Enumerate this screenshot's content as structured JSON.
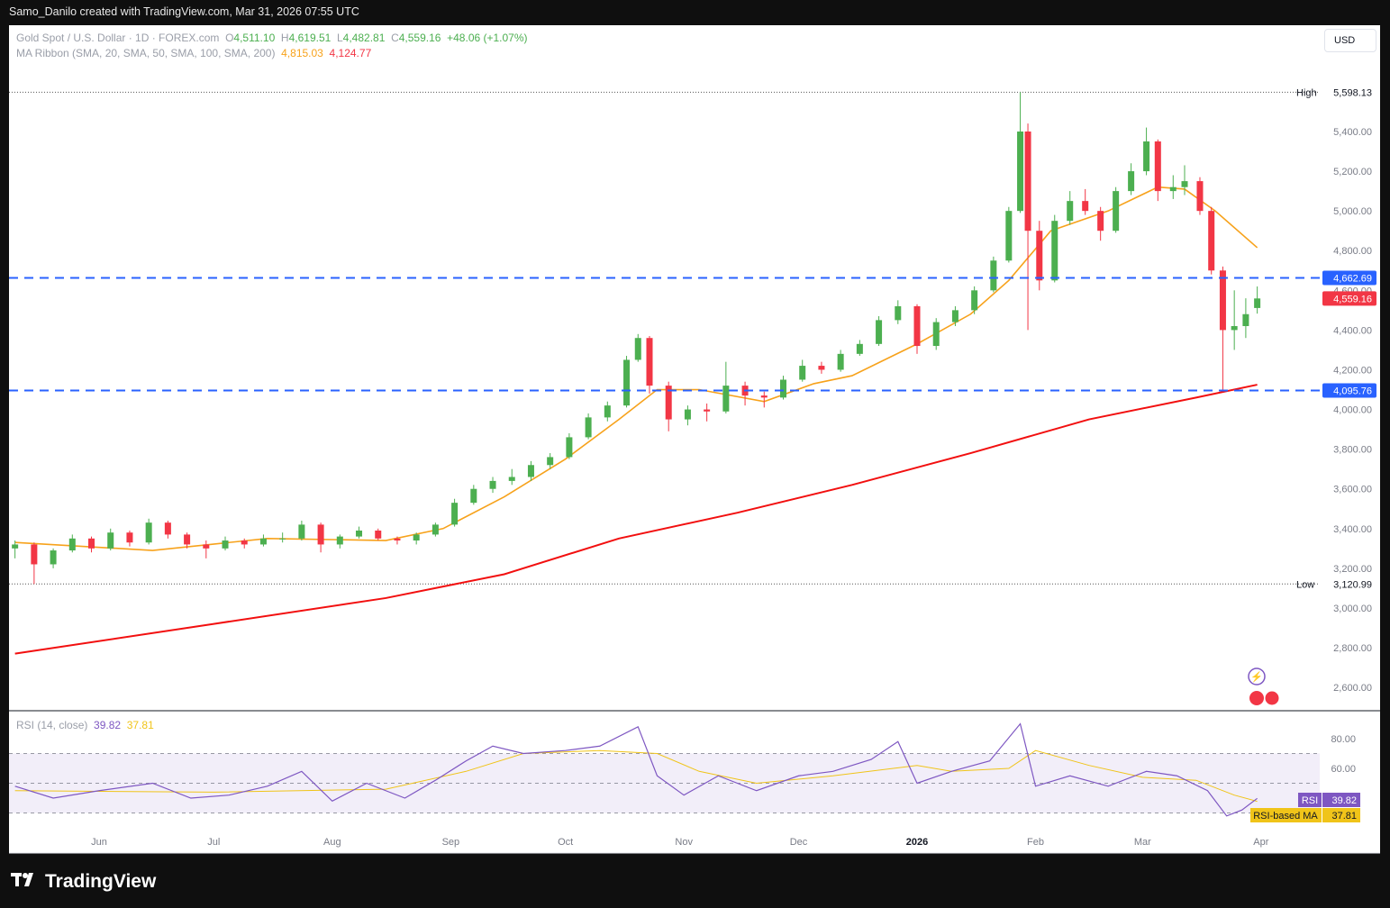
{
  "header": {
    "credit": "Samo_Danilo created with TradingView.com, Mar 31, 2026 07:55 UTC",
    "currency": "USD"
  },
  "legend": {
    "symbol": "Gold Spot / U.S. Dollar · 1D · FOREX.com",
    "o_label": "O",
    "o": "4,511.10",
    "h_label": "H",
    "h": "4,619.51",
    "l_label": "L",
    "l": "4,482.81",
    "c_label": "C",
    "c": "4,559.16",
    "change": "+48.06 (+1.07%)",
    "ma_label": "MA Ribbon (SMA, 20, SMA, 50, SMA, 100, SMA, 200)",
    "ma20": "4,815.03",
    "ma200": "4,124.77",
    "rsi_label": "RSI (14, close)",
    "rsi": "39.82",
    "rsi_ma": "37.81"
  },
  "footer": {
    "brand": "TradingView"
  },
  "colors": {
    "up": "#4caf50",
    "down": "#f23645",
    "sma20": "#f7a21b",
    "sma200": "#f20f0f",
    "levels": "#2962ff",
    "rsi": "#7e57c2",
    "rsi_ma": "#f0c419"
  },
  "chart_data": {
    "type": "candlestick",
    "price_axis": {
      "ticks": [
        2600,
        2800,
        3000,
        3200,
        3400,
        3600,
        3800,
        4000,
        4200,
        4400,
        4600,
        4800,
        5000,
        5200,
        5400
      ],
      "labels": [
        "2,600.00",
        "2,800.00",
        "3,000.00",
        "3,200.00",
        "3,400.00",
        "3,600.00",
        "3,800.00",
        "4,000.00",
        "4,200.00",
        "4,400.00",
        "4,600.00",
        "4,800.00",
        "5,000.00",
        "5,200.00",
        "5,400.00"
      ]
    },
    "time_axis": [
      {
        "date": "2025-06-01",
        "label": "Jun"
      },
      {
        "date": "2025-07-01",
        "label": "Jul"
      },
      {
        "date": "2025-08-01",
        "label": "Aug"
      },
      {
        "date": "2025-09-01",
        "label": "Sep"
      },
      {
        "date": "2025-10-01",
        "label": "Oct"
      },
      {
        "date": "2025-11-01",
        "label": "Nov"
      },
      {
        "date": "2025-12-01",
        "label": "Dec"
      },
      {
        "date": "2026-01-01",
        "label": "2026"
      },
      {
        "date": "2026-02-01",
        "label": "Feb"
      },
      {
        "date": "2026-03-01",
        "label": "Mar"
      },
      {
        "date": "2026-04-01",
        "label": "Apr"
      }
    ],
    "high": {
      "label": "High",
      "value": 5598.13,
      "text": "5,598.13"
    },
    "low": {
      "label": "Low",
      "value": 3120.99,
      "text": "3,120.99"
    },
    "levels": [
      {
        "value": 4662.69,
        "text": "4,662.69"
      },
      {
        "value": 4095.76,
        "text": "4,095.76"
      }
    ],
    "last_price": {
      "value": 4559.16,
      "text": "4,559.16"
    },
    "candles": [
      [
        "2025-05-10",
        3300,
        3340,
        3250,
        3320
      ],
      [
        "2025-05-15",
        3320,
        3330,
        3121,
        3220
      ],
      [
        "2025-05-20",
        3220,
        3300,
        3200,
        3290
      ],
      [
        "2025-05-25",
        3290,
        3370,
        3280,
        3350
      ],
      [
        "2025-05-30",
        3350,
        3360,
        3280,
        3300
      ],
      [
        "2025-06-04",
        3300,
        3400,
        3290,
        3380
      ],
      [
        "2025-06-09",
        3380,
        3390,
        3310,
        3330
      ],
      [
        "2025-06-14",
        3330,
        3450,
        3320,
        3430
      ],
      [
        "2025-06-19",
        3430,
        3440,
        3350,
        3370
      ],
      [
        "2025-06-24",
        3370,
        3380,
        3300,
        3320
      ],
      [
        "2025-06-29",
        3320,
        3340,
        3250,
        3300
      ],
      [
        "2025-07-04",
        3300,
        3360,
        3290,
        3340
      ],
      [
        "2025-07-09",
        3340,
        3350,
        3300,
        3320
      ],
      [
        "2025-07-14",
        3320,
        3370,
        3310,
        3350
      ],
      [
        "2025-07-19",
        3350,
        3380,
        3330,
        3350
      ],
      [
        "2025-07-24",
        3350,
        3440,
        3340,
        3420
      ],
      [
        "2025-07-29",
        3420,
        3430,
        3280,
        3320
      ],
      [
        "2025-08-03",
        3320,
        3370,
        3300,
        3360
      ],
      [
        "2025-08-08",
        3360,
        3410,
        3350,
        3390
      ],
      [
        "2025-08-13",
        3390,
        3400,
        3340,
        3350
      ],
      [
        "2025-08-18",
        3350,
        3360,
        3320,
        3340
      ],
      [
        "2025-08-23",
        3340,
        3380,
        3320,
        3370
      ],
      [
        "2025-08-28",
        3370,
        3430,
        3360,
        3420
      ],
      [
        "2025-09-02",
        3420,
        3550,
        3410,
        3530
      ],
      [
        "2025-09-07",
        3530,
        3620,
        3520,
        3600
      ],
      [
        "2025-09-12",
        3600,
        3660,
        3580,
        3640
      ],
      [
        "2025-09-17",
        3640,
        3700,
        3620,
        3660
      ],
      [
        "2025-09-22",
        3660,
        3740,
        3640,
        3720
      ],
      [
        "2025-09-27",
        3720,
        3780,
        3700,
        3760
      ],
      [
        "2025-10-02",
        3760,
        3880,
        3750,
        3860
      ],
      [
        "2025-10-07",
        3860,
        3980,
        3850,
        3960
      ],
      [
        "2025-10-12",
        3960,
        4040,
        3940,
        4020
      ],
      [
        "2025-10-17",
        4020,
        4270,
        4010,
        4250
      ],
      [
        "2025-10-20",
        4250,
        4380,
        4240,
        4360
      ],
      [
        "2025-10-23",
        4360,
        4370,
        4080,
        4120
      ],
      [
        "2025-10-28",
        4120,
        4140,
        3890,
        3950
      ],
      [
        "2025-11-02",
        3950,
        4020,
        3920,
        4000
      ],
      [
        "2025-11-07",
        4000,
        4030,
        3940,
        3990
      ],
      [
        "2025-11-12",
        3990,
        4240,
        3980,
        4120
      ],
      [
        "2025-11-17",
        4120,
        4140,
        4020,
        4070
      ],
      [
        "2025-11-22",
        4070,
        4090,
        4010,
        4060
      ],
      [
        "2025-11-27",
        4060,
        4170,
        4050,
        4150
      ],
      [
        "2025-12-02",
        4150,
        4250,
        4140,
        4220
      ],
      [
        "2025-12-07",
        4220,
        4240,
        4180,
        4200
      ],
      [
        "2025-12-12",
        4200,
        4300,
        4190,
        4280
      ],
      [
        "2025-12-17",
        4280,
        4350,
        4270,
        4330
      ],
      [
        "2025-12-22",
        4330,
        4470,
        4320,
        4450
      ],
      [
        "2025-12-27",
        4450,
        4550,
        4430,
        4520
      ],
      [
        "2026-01-01",
        4520,
        4530,
        4280,
        4320
      ],
      [
        "2026-01-06",
        4320,
        4460,
        4300,
        4440
      ],
      [
        "2026-01-11",
        4440,
        4520,
        4420,
        4500
      ],
      [
        "2026-01-16",
        4500,
        4620,
        4480,
        4600
      ],
      [
        "2026-01-21",
        4600,
        4770,
        4590,
        4750
      ],
      [
        "2026-01-25",
        4750,
        5020,
        4740,
        5000
      ],
      [
        "2026-01-28",
        5000,
        5598.13,
        4990,
        5400
      ],
      [
        "2026-01-30",
        5400,
        5440,
        4400,
        4900
      ],
      [
        "2026-02-02",
        4900,
        4950,
        4600,
        4650
      ],
      [
        "2026-02-06",
        4650,
        4980,
        4640,
        4950
      ],
      [
        "2026-02-10",
        4950,
        5100,
        4930,
        5050
      ],
      [
        "2026-02-14",
        5050,
        5110,
        4980,
        5000
      ],
      [
        "2026-02-18",
        5000,
        5020,
        4850,
        4900
      ],
      [
        "2026-02-22",
        4900,
        5120,
        4890,
        5100
      ],
      [
        "2026-02-26",
        5100,
        5240,
        5080,
        5200
      ],
      [
        "2026-03-02",
        5200,
        5420,
        5180,
        5350
      ],
      [
        "2026-03-05",
        5350,
        5360,
        5050,
        5100
      ],
      [
        "2026-03-09",
        5100,
        5180,
        5060,
        5120
      ],
      [
        "2026-03-12",
        5120,
        5230,
        5080,
        5150
      ],
      [
        "2026-03-16",
        5150,
        5170,
        4980,
        5000
      ],
      [
        "2026-03-19",
        5000,
        5020,
        4680,
        4700
      ],
      [
        "2026-03-22",
        4700,
        4720,
        4100,
        4400
      ],
      [
        "2026-03-25",
        4400,
        4600,
        4300,
        4420
      ],
      [
        "2026-03-28",
        4420,
        4560,
        4360,
        4480
      ],
      [
        "2026-03-31",
        4511.1,
        4619.51,
        4482.81,
        4559.16
      ]
    ],
    "sma20": [
      [
        "2025-05-10",
        3330
      ],
      [
        "2025-06-15",
        3290
      ],
      [
        "2025-07-15",
        3350
      ],
      [
        "2025-08-15",
        3340
      ],
      [
        "2025-08-30",
        3400
      ],
      [
        "2025-09-15",
        3560
      ],
      [
        "2025-10-01",
        3750
      ],
      [
        "2025-10-15",
        3950
      ],
      [
        "2025-10-25",
        4100
      ],
      [
        "2025-11-05",
        4100
      ],
      [
        "2025-11-22",
        4040
      ],
      [
        "2025-12-05",
        4130
      ],
      [
        "2025-12-15",
        4170
      ],
      [
        "2026-01-01",
        4330
      ],
      [
        "2026-01-15",
        4480
      ],
      [
        "2026-01-25",
        4650
      ],
      [
        "2026-02-05",
        4900
      ],
      [
        "2026-02-20",
        5000
      ],
      [
        "2026-03-05",
        5120
      ],
      [
        "2026-03-12",
        5110
      ],
      [
        "2026-03-20",
        5000
      ],
      [
        "2026-03-31",
        4815.03
      ]
    ],
    "sma200": [
      [
        "2025-05-10",
        2770
      ],
      [
        "2025-07-01",
        2920
      ],
      [
        "2025-08-15",
        3050
      ],
      [
        "2025-09-15",
        3170
      ],
      [
        "2025-10-15",
        3350
      ],
      [
        "2025-11-15",
        3480
      ],
      [
        "2025-12-15",
        3620
      ],
      [
        "2026-01-15",
        3780
      ],
      [
        "2026-02-15",
        3950
      ],
      [
        "2026-03-15",
        4060
      ],
      [
        "2026-03-31",
        4124.77
      ]
    ],
    "rsi_panel": {
      "ticks": [
        60,
        80
      ],
      "labels": [
        "60.00",
        "80.00"
      ],
      "bands": [
        30,
        50,
        70
      ],
      "rsi_label": "RSI",
      "rsi_text": "39.82",
      "ma_label": "RSI-based MA",
      "ma_text": "37.81",
      "rsi": [
        [
          "2025-05-10",
          48
        ],
        [
          "2025-05-20",
          40
        ],
        [
          "2025-06-01",
          45
        ],
        [
          "2025-06-15",
          50
        ],
        [
          "2025-06-25",
          40
        ],
        [
          "2025-07-05",
          42
        ],
        [
          "2025-07-15",
          48
        ],
        [
          "2025-07-24",
          58
        ],
        [
          "2025-08-01",
          38
        ],
        [
          "2025-08-10",
          50
        ],
        [
          "2025-08-20",
          40
        ],
        [
          "2025-08-28",
          52
        ],
        [
          "2025-09-05",
          65
        ],
        [
          "2025-09-12",
          75
        ],
        [
          "2025-09-20",
          70
        ],
        [
          "2025-10-01",
          72
        ],
        [
          "2025-10-10",
          75
        ],
        [
          "2025-10-20",
          88
        ],
        [
          "2025-10-25",
          55
        ],
        [
          "2025-11-01",
          42
        ],
        [
          "2025-11-10",
          55
        ],
        [
          "2025-11-20",
          45
        ],
        [
          "2025-12-01",
          55
        ],
        [
          "2025-12-10",
          58
        ],
        [
          "2025-12-20",
          66
        ],
        [
          "2025-12-27",
          78
        ],
        [
          "2026-01-01",
          50
        ],
        [
          "2026-01-10",
          58
        ],
        [
          "2026-01-20",
          65
        ],
        [
          "2026-01-28",
          90
        ],
        [
          "2026-02-01",
          48
        ],
        [
          "2026-02-10",
          55
        ],
        [
          "2026-02-20",
          48
        ],
        [
          "2026-03-02",
          58
        ],
        [
          "2026-03-10",
          55
        ],
        [
          "2026-03-18",
          45
        ],
        [
          "2026-03-23",
          28
        ],
        [
          "2026-03-27",
          32
        ],
        [
          "2026-03-31",
          39.82
        ]
      ],
      "rsi_ma": [
        [
          "2025-05-10",
          45
        ],
        [
          "2025-07-01",
          44
        ],
        [
          "2025-08-15",
          46
        ],
        [
          "2025-09-05",
          58
        ],
        [
          "2025-09-20",
          70
        ],
        [
          "2025-10-10",
          72
        ],
        [
          "2025-10-25",
          70
        ],
        [
          "2025-11-05",
          58
        ],
        [
          "2025-11-20",
          50
        ],
        [
          "2025-12-10",
          55
        ],
        [
          "2026-01-01",
          62
        ],
        [
          "2026-01-10",
          58
        ],
        [
          "2026-01-25",
          60
        ],
        [
          "2026-02-01",
          72
        ],
        [
          "2026-02-15",
          62
        ],
        [
          "2026-03-01",
          54
        ],
        [
          "2026-03-15",
          52
        ],
        [
          "2026-03-25",
          42
        ],
        [
          "2026-03-31",
          37.81
        ]
      ]
    }
  }
}
